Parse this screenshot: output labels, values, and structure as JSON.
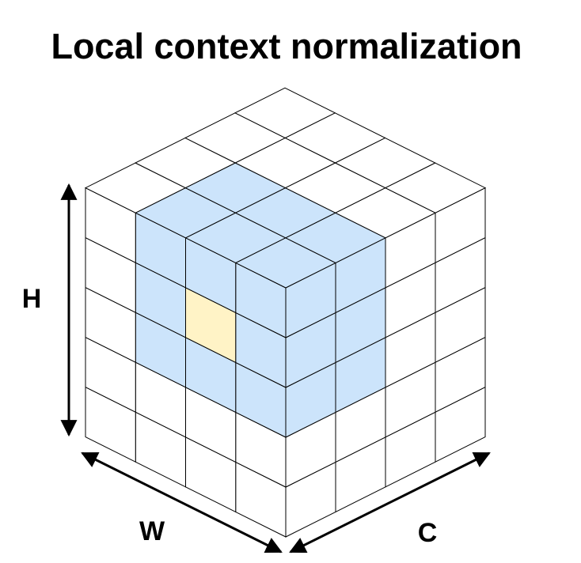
{
  "title": "Local context normalization",
  "axes": {
    "height": "H",
    "width": "W",
    "channels": "C"
  }
}
